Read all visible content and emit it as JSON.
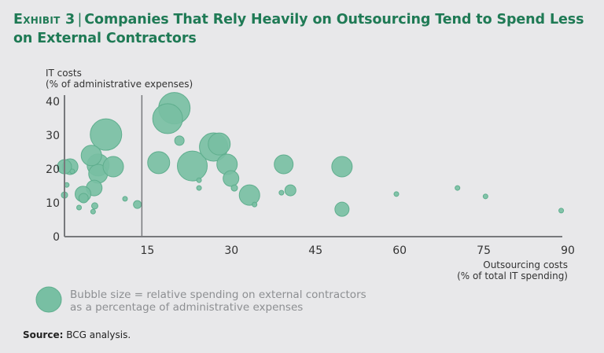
{
  "title": {
    "exhibit": "Exhibit 3",
    "separator": "|",
    "text": "Companies That Rely Heavily on Outsourcing Tend to Spend Less on External Contractors"
  },
  "legend": {
    "text_line1": "Bubble size = relative spending on external contractors",
    "text_line2": "as a percentage of administrative expenses"
  },
  "source": {
    "label": "Source:",
    "text": "BCG analysis."
  },
  "colors": {
    "title": "#1f7a55",
    "bubble": "#78bfa3",
    "bubble_stroke": "#5fae8e",
    "axis": "#77797c"
  },
  "chart_data": {
    "type": "scatter",
    "subtype": "bubble",
    "title": "Companies That Rely Heavily on Outsourcing Tend to Spend Less on External Contractors",
    "ylabel_line1": "IT costs",
    "ylabel_line2": "(% of administrative expenses)",
    "xlabel_line1": "Outsourcing costs",
    "xlabel_line2": "(% of total IT spending)",
    "xlim": [
      1.2,
      90
    ],
    "ylim": [
      0,
      40
    ],
    "xticks": [
      15,
      30,
      45,
      60,
      75,
      90
    ],
    "yticks": [
      0,
      10,
      20,
      30,
      40
    ],
    "reference_line_x": 15,
    "grid": false,
    "size_meaning": "relative spending on external contractors as a percentage of administrative expenses (relative units)",
    "points": [
      {
        "x": 20.8,
        "y": 38.0,
        "size": 20
      },
      {
        "x": 19.6,
        "y": 34.9,
        "size": 19
      },
      {
        "x": 8.6,
        "y": 30.2,
        "size": 20
      },
      {
        "x": 21.7,
        "y": 28.4,
        "size": 6
      },
      {
        "x": 18.0,
        "y": 21.9,
        "size": 14
      },
      {
        "x": 24.0,
        "y": 20.9,
        "size": 19
      },
      {
        "x": 27.8,
        "y": 26.5,
        "size": 18
      },
      {
        "x": 28.8,
        "y": 27.4,
        "size": 14
      },
      {
        "x": 30.2,
        "y": 21.4,
        "size": 13
      },
      {
        "x": 30.9,
        "y": 17.2,
        "size": 10
      },
      {
        "x": 31.5,
        "y": 14.4,
        "size": 4
      },
      {
        "x": 25.2,
        "y": 16.7,
        "size": 3
      },
      {
        "x": 25.2,
        "y": 14.4,
        "size": 3
      },
      {
        "x": 34.2,
        "y": 12.3,
        "size": 13
      },
      {
        "x": 35.1,
        "y": 9.5,
        "size": 3
      },
      {
        "x": 40.3,
        "y": 21.4,
        "size": 12
      },
      {
        "x": 41.5,
        "y": 13.7,
        "size": 7
      },
      {
        "x": 39.9,
        "y": 13.0,
        "size": 3
      },
      {
        "x": 50.7,
        "y": 20.7,
        "size": 13
      },
      {
        "x": 50.7,
        "y": 8.1,
        "size": 9
      },
      {
        "x": 60.4,
        "y": 12.6,
        "size": 3
      },
      {
        "x": 71.3,
        "y": 14.4,
        "size": 3
      },
      {
        "x": 76.3,
        "y": 11.9,
        "size": 3
      },
      {
        "x": 89.8,
        "y": 7.7,
        "size": 3
      },
      {
        "x": 7.2,
        "y": 21.2,
        "size": 14
      },
      {
        "x": 7.2,
        "y": 18.6,
        "size": 12
      },
      {
        "x": 6.0,
        "y": 24.0,
        "size": 13
      },
      {
        "x": 9.9,
        "y": 20.7,
        "size": 13
      },
      {
        "x": 6.5,
        "y": 14.4,
        "size": 10
      },
      {
        "x": 4.5,
        "y": 12.6,
        "size": 10
      },
      {
        "x": 4.6,
        "y": 11.4,
        "size": 6
      },
      {
        "x": 2.2,
        "y": 20.7,
        "size": 10
      },
      {
        "x": 1.2,
        "y": 20.7,
        "size": 9
      },
      {
        "x": 2.6,
        "y": 19.3,
        "size": 3
      },
      {
        "x": 1.6,
        "y": 15.3,
        "size": 3
      },
      {
        "x": 1.2,
        "y": 12.3,
        "size": 4
      },
      {
        "x": 3.8,
        "y": 8.6,
        "size": 3
      },
      {
        "x": 6.6,
        "y": 9.1,
        "size": 4
      },
      {
        "x": 6.3,
        "y": 7.4,
        "size": 3
      },
      {
        "x": 12.0,
        "y": 11.2,
        "size": 3
      },
      {
        "x": 14.2,
        "y": 9.5,
        "size": 5
      }
    ]
  }
}
